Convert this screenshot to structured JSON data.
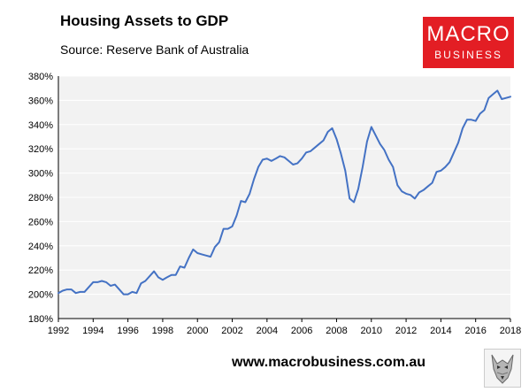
{
  "header": {
    "title": "Housing Assets to GDP",
    "source": "Source: Reserve Bank of Australia"
  },
  "logo": {
    "line1": "MACRO",
    "line2": "BUSINESS",
    "color": "#e31e24"
  },
  "footer": {
    "url": "www.macrobusiness.com.au",
    "mascot_icon": "wolf-icon"
  },
  "chart_data": {
    "type": "line",
    "title": "Housing Assets to GDP",
    "xlabel": "",
    "ylabel": "",
    "xlim": [
      1992,
      2018
    ],
    "ylim": [
      180,
      380
    ],
    "x_ticks": [
      1992,
      1994,
      1996,
      1998,
      2000,
      2002,
      2004,
      2006,
      2008,
      2010,
      2012,
      2014,
      2016,
      2018
    ],
    "y_ticks": [
      180,
      200,
      220,
      240,
      260,
      280,
      300,
      320,
      340,
      360,
      380
    ],
    "y_tick_suffix": "%",
    "grid": "horizontal",
    "plot_background": "#f2f2f2",
    "gridline_color": "#ffffff",
    "series": [
      {
        "color": "#4472c4",
        "x": [
          1992.0,
          1992.25,
          1992.5,
          1992.75,
          1993.0,
          1993.25,
          1993.5,
          1993.75,
          1994.0,
          1994.25,
          1994.5,
          1994.75,
          1995.0,
          1995.25,
          1995.5,
          1995.75,
          1996.0,
          1996.25,
          1996.5,
          1996.75,
          1997.0,
          1997.25,
          1997.5,
          1997.75,
          1998.0,
          1998.25,
          1998.5,
          1998.75,
          1999.0,
          1999.25,
          1999.5,
          1999.75,
          2000.0,
          2000.25,
          2000.5,
          2000.75,
          2001.0,
          2001.25,
          2001.5,
          2001.75,
          2002.0,
          2002.25,
          2002.5,
          2002.75,
          2003.0,
          2003.25,
          2003.5,
          2003.75,
          2004.0,
          2004.25,
          2004.5,
          2004.75,
          2005.0,
          2005.25,
          2005.5,
          2005.75,
          2006.0,
          2006.25,
          2006.5,
          2006.75,
          2007.0,
          2007.25,
          2007.5,
          2007.75,
          2008.0,
          2008.25,
          2008.5,
          2008.75,
          2009.0,
          2009.25,
          2009.5,
          2009.75,
          2010.0,
          2010.25,
          2010.5,
          2010.75,
          2011.0,
          2011.25,
          2011.5,
          2011.75,
          2012.0,
          2012.25,
          2012.5,
          2012.75,
          2013.0,
          2013.25,
          2013.5,
          2013.75,
          2014.0,
          2014.25,
          2014.5,
          2014.75,
          2015.0,
          2015.25,
          2015.5,
          2015.75,
          2016.0,
          2016.25,
          2016.5,
          2016.75,
          2017.0,
          2017.25,
          2017.5,
          2017.75,
          2018.0
        ],
        "y": [
          201,
          203,
          204,
          204,
          201,
          202,
          202,
          206,
          210,
          210,
          211,
          210,
          207,
          208,
          204,
          200,
          200,
          202,
          201,
          209,
          211,
          215,
          219,
          214,
          212,
          214,
          216,
          216,
          223,
          222,
          230,
          237,
          234,
          233,
          232,
          231,
          239,
          243,
          254,
          254,
          256,
          265,
          277,
          276,
          283,
          295,
          305,
          311,
          312,
          310,
          312,
          314,
          313,
          310,
          307,
          308,
          312,
          317,
          318,
          321,
          324,
          327,
          334,
          337,
          328,
          316,
          302,
          279,
          276,
          287,
          305,
          326,
          338,
          331,
          324,
          319,
          311,
          305,
          290,
          285,
          283,
          282,
          279,
          284,
          286,
          289,
          292,
          301,
          302,
          305,
          309,
          317,
          325,
          337,
          344,
          344,
          343,
          349,
          352,
          362,
          365,
          368,
          361,
          362,
          363
        ]
      }
    ]
  }
}
